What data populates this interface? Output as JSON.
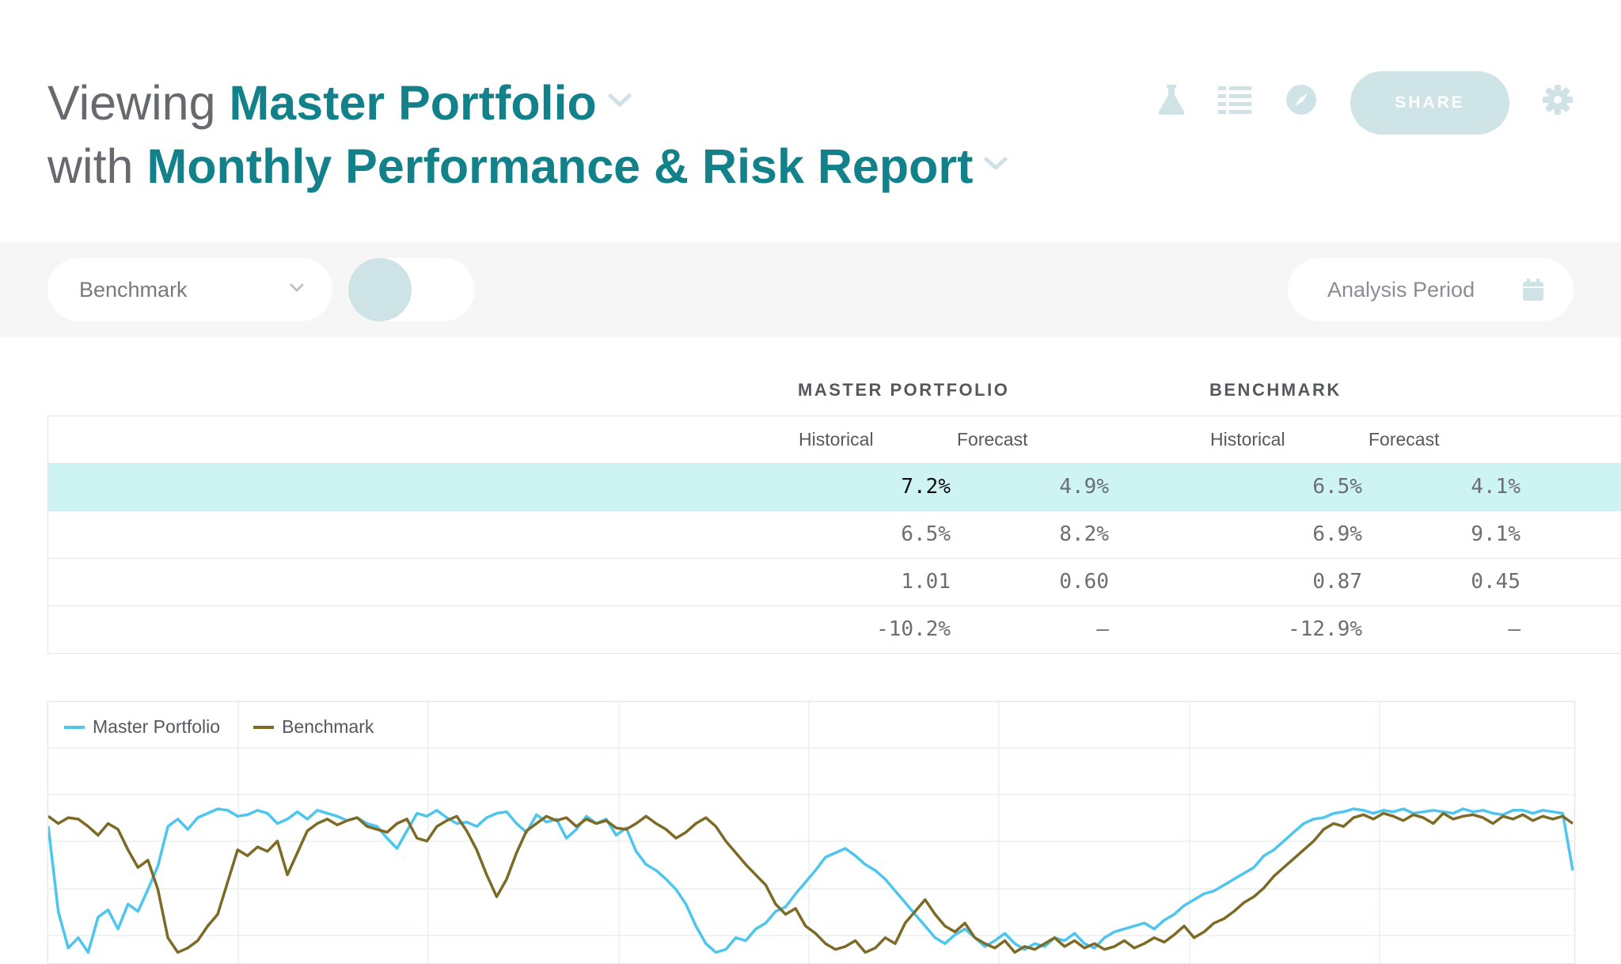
{
  "header": {
    "line1_prefix": "Viewing",
    "portfolio_name": "Master Portfolio",
    "line2_prefix": "with",
    "report_name": "Monthly Performance & Risk Report",
    "share_label": "SHARE"
  },
  "toolbar": {
    "benchmark_label": "Benchmark",
    "analysis_period_label": "Analysis Period"
  },
  "table": {
    "groups": [
      "MASTER PORTFOLIO",
      "BENCHMARK"
    ],
    "subheaders": [
      "Historical",
      "Forecast",
      "Historical",
      "Forecast"
    ],
    "rows": [
      [
        "7.2%",
        "4.9%",
        "6.5%",
        "4.1%"
      ],
      [
        "6.5%",
        "8.2%",
        "6.9%",
        "9.1%"
      ],
      [
        "1.01",
        "0.60",
        "0.87",
        "0.45"
      ],
      [
        "-10.2%",
        "–",
        "-12.9%",
        "–"
      ]
    ]
  },
  "colors": {
    "accent": "#12818a",
    "highlight_row": "#cdf3f3",
    "series_portfolio": "#4cc6ee",
    "series_benchmark": "#7d6a26"
  },
  "chart_data": {
    "type": "line",
    "legend": "top-left",
    "grid": true,
    "series": [
      {
        "name": "Master Portfolio",
        "values": [
          0.88,
          0.3,
          0.05,
          0.12,
          0.02,
          0.26,
          0.31,
          0.18,
          0.35,
          0.3,
          0.45,
          0.61,
          0.88,
          0.93,
          0.86,
          0.94,
          0.97,
          1.0,
          0.99,
          0.95,
          0.96,
          0.99,
          0.97,
          0.9,
          0.93,
          0.98,
          0.93,
          0.99,
          0.97,
          0.95,
          0.92,
          0.94,
          0.9,
          0.88,
          0.8,
          0.73,
          0.85,
          0.97,
          0.95,
          0.99,
          0.94,
          0.9,
          0.91,
          0.88,
          0.94,
          0.97,
          0.98,
          0.9,
          0.84,
          0.96,
          0.91,
          0.93,
          0.8,
          0.86,
          0.95,
          0.9,
          0.93,
          0.82,
          0.87,
          0.71,
          0.62,
          0.58,
          0.52,
          0.45,
          0.35,
          0.2,
          0.08,
          0.02,
          0.04,
          0.12,
          0.1,
          0.18,
          0.22,
          0.3,
          0.33,
          0.42,
          0.5,
          0.58,
          0.67,
          0.7,
          0.73,
          0.68,
          0.62,
          0.58,
          0.52,
          0.44,
          0.36,
          0.28,
          0.2,
          0.12,
          0.08,
          0.14,
          0.18,
          0.12,
          0.06,
          0.1,
          0.15,
          0.08,
          0.04,
          0.08,
          0.06,
          0.12,
          0.1,
          0.15,
          0.08,
          0.05,
          0.12,
          0.16,
          0.18,
          0.2,
          0.22,
          0.18,
          0.24,
          0.28,
          0.34,
          0.38,
          0.42,
          0.44,
          0.48,
          0.52,
          0.56,
          0.6,
          0.68,
          0.72,
          0.78,
          0.84,
          0.9,
          0.93,
          0.94,
          0.97,
          0.98,
          1.0,
          0.99,
          0.97,
          0.99,
          0.98,
          1.0,
          0.97,
          0.98,
          0.99,
          0.98,
          0.97,
          1.0,
          0.98,
          0.99,
          0.97,
          0.96,
          0.99,
          0.99,
          0.97,
          0.99,
          0.98,
          0.97,
          0.58
        ]
      },
      {
        "name": "Benchmark",
        "values": [
          0.95,
          0.9,
          0.94,
          0.93,
          0.88,
          0.82,
          0.9,
          0.86,
          0.72,
          0.6,
          0.65,
          0.45,
          0.12,
          0.02,
          0.05,
          0.1,
          0.2,
          0.28,
          0.5,
          0.72,
          0.68,
          0.74,
          0.71,
          0.78,
          0.55,
          0.7,
          0.85,
          0.9,
          0.93,
          0.89,
          0.92,
          0.94,
          0.88,
          0.86,
          0.84,
          0.9,
          0.93,
          0.8,
          0.78,
          0.88,
          0.92,
          0.95,
          0.85,
          0.72,
          0.55,
          0.4,
          0.52,
          0.7,
          0.85,
          0.9,
          0.95,
          0.92,
          0.94,
          0.88,
          0.93,
          0.9,
          0.92,
          0.87,
          0.86,
          0.9,
          0.95,
          0.9,
          0.86,
          0.8,
          0.84,
          0.9,
          0.94,
          0.88,
          0.78,
          0.7,
          0.62,
          0.55,
          0.48,
          0.35,
          0.28,
          0.32,
          0.2,
          0.15,
          0.08,
          0.04,
          0.06,
          0.1,
          0.02,
          0.05,
          0.12,
          0.08,
          0.22,
          0.3,
          0.38,
          0.28,
          0.2,
          0.16,
          0.22,
          0.12,
          0.08,
          0.05,
          0.1,
          0.02,
          0.06,
          0.04,
          0.08,
          0.12,
          0.06,
          0.1,
          0.05,
          0.08,
          0.04,
          0.06,
          0.1,
          0.05,
          0.08,
          0.12,
          0.09,
          0.14,
          0.2,
          0.12,
          0.16,
          0.22,
          0.25,
          0.3,
          0.36,
          0.4,
          0.46,
          0.54,
          0.6,
          0.66,
          0.72,
          0.78,
          0.86,
          0.9,
          0.88,
          0.94,
          0.96,
          0.93,
          0.97,
          0.95,
          0.92,
          0.96,
          0.94,
          0.9,
          0.97,
          0.93,
          0.95,
          0.96,
          0.94,
          0.9,
          0.95,
          0.93,
          0.96,
          0.92,
          0.95,
          0.93,
          0.95,
          0.9
        ]
      }
    ]
  }
}
